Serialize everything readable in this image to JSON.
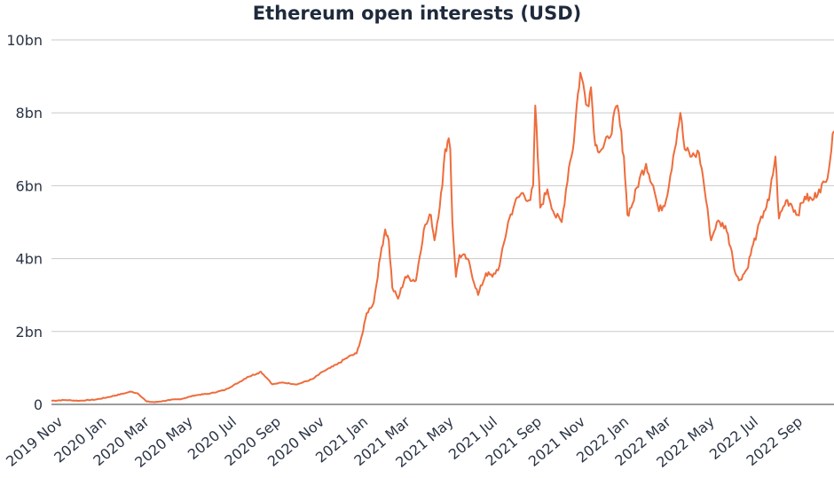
{
  "chart_data": {
    "type": "line",
    "title": "Ethereum open interests (USD)",
    "xlabel": "",
    "ylabel": "",
    "ylim": [
      0,
      10
    ],
    "y_unit": "bn USD",
    "y_ticks": [
      0,
      2,
      4,
      6,
      8,
      10
    ],
    "y_tick_labels": [
      "0",
      "2bn",
      "4bn",
      "6bn",
      "8bn",
      "10bn"
    ],
    "x_range": [
      "2019-11-01",
      "2022-10-31"
    ],
    "x_ticks": [
      "2019-11-01",
      "2020-01-01",
      "2020-03-01",
      "2020-05-01",
      "2020-07-01",
      "2020-09-01",
      "2020-11-01",
      "2021-01-01",
      "2021-03-01",
      "2021-05-01",
      "2021-07-01",
      "2021-09-01",
      "2021-11-01",
      "2022-01-01",
      "2022-03-01",
      "2022-05-01",
      "2022-07-01",
      "2022-09-01"
    ],
    "x_tick_labels": [
      "2019 Nov",
      "2020 Jan",
      "2020 Mar",
      "2020 May",
      "2020 Jul",
      "2020 Sep",
      "2020 Nov",
      "2021 Jan",
      "2021 Mar",
      "2021 May",
      "2021 Jul",
      "2021 Sep",
      "2021 Nov",
      "2022 Jan",
      "2022 Mar",
      "2022 May",
      "2022 Jul",
      "2022 Sep"
    ],
    "grid": "horizontal",
    "line_color": "#ee6c3c",
    "series": [
      {
        "x": [
          "2019-11-01",
          "2019-11-20",
          "2019-12-10",
          "2020-01-01",
          "2020-01-20",
          "2020-02-10",
          "2020-02-20",
          "2020-03-01",
          "2020-03-13",
          "2020-03-25",
          "2020-04-15",
          "2020-05-01",
          "2020-05-20",
          "2020-06-10",
          "2020-07-01",
          "2020-07-20",
          "2020-08-01",
          "2020-08-15",
          "2020-08-20",
          "2020-09-01",
          "2020-09-05",
          "2020-09-20",
          "2020-10-10",
          "2020-11-01",
          "2020-11-15",
          "2020-11-25",
          "2020-12-05",
          "2020-12-20",
          "2021-01-01",
          "2021-01-10",
          "2021-01-15",
          "2021-01-25",
          "2021-02-05",
          "2021-02-10",
          "2021-02-15",
          "2021-02-20",
          "2021-02-28",
          "2021-03-10",
          "2021-03-25",
          "2021-04-05",
          "2021-04-15",
          "2021-04-20",
          "2021-05-01",
          "2021-05-05",
          "2021-05-10",
          "2021-05-12",
          "2021-05-15",
          "2021-05-20",
          "2021-05-25",
          "2021-06-05",
          "2021-06-20",
          "2021-07-01",
          "2021-07-10",
          "2021-07-20",
          "2021-08-01",
          "2021-08-10",
          "2021-08-20",
          "2021-09-01",
          "2021-09-05",
          "2021-09-08",
          "2021-09-15",
          "2021-09-25",
          "2021-10-05",
          "2021-10-15",
          "2021-10-25",
          "2021-11-01",
          "2021-11-05",
          "2021-11-10",
          "2021-11-20",
          "2021-11-25",
          "2021-12-01",
          "2021-12-10",
          "2021-12-20",
          "2022-01-01",
          "2022-01-10",
          "2022-01-15",
          "2022-01-22",
          "2022-02-01",
          "2022-02-10",
          "2022-02-20",
          "2022-02-28",
          "2022-03-10",
          "2022-03-20",
          "2022-03-30",
          "2022-04-05",
          "2022-04-15",
          "2022-04-25",
          "2022-05-01",
          "2022-05-09",
          "2022-05-12",
          "2022-05-20",
          "2022-06-01",
          "2022-06-10",
          "2022-06-15",
          "2022-06-20",
          "2022-07-01",
          "2022-07-10",
          "2022-07-15",
          "2022-07-25",
          "2022-08-01",
          "2022-08-10",
          "2022-08-15",
          "2022-08-25",
          "2022-09-01",
          "2022-09-10",
          "2022-09-20",
          "2022-10-01",
          "2022-10-10",
          "2022-10-20",
          "2022-10-31"
        ],
        "y": [
          0.1,
          0.12,
          0.1,
          0.13,
          0.2,
          0.3,
          0.35,
          0.3,
          0.08,
          0.06,
          0.12,
          0.15,
          0.25,
          0.3,
          0.4,
          0.6,
          0.75,
          0.85,
          0.9,
          0.65,
          0.55,
          0.6,
          0.55,
          0.7,
          0.9,
          1.0,
          1.1,
          1.3,
          1.4,
          2.0,
          2.5,
          2.8,
          4.3,
          4.8,
          4.5,
          3.2,
          2.9,
          3.5,
          3.4,
          4.8,
          5.2,
          4.5,
          6.0,
          7.0,
          7.3,
          7.0,
          5.0,
          3.5,
          4.1,
          4.0,
          3.0,
          3.6,
          3.5,
          3.8,
          5.0,
          5.5,
          5.8,
          5.6,
          6.0,
          8.2,
          5.4,
          5.9,
          5.2,
          5.0,
          6.5,
          7.2,
          8.2,
          9.1,
          8.2,
          8.7,
          7.1,
          7.0,
          7.3,
          8.2,
          6.8,
          5.2,
          5.5,
          6.2,
          6.6,
          6.0,
          5.3,
          5.6,
          6.8,
          8.0,
          7.0,
          6.8,
          6.9,
          6.2,
          5.0,
          4.5,
          5.0,
          4.9,
          4.2,
          3.6,
          3.4,
          3.7,
          4.4,
          4.7,
          5.3,
          5.6,
          6.8,
          5.1,
          5.6,
          5.5,
          5.2,
          5.7,
          5.6,
          5.9,
          6.1,
          7.5
        ]
      }
    ]
  }
}
